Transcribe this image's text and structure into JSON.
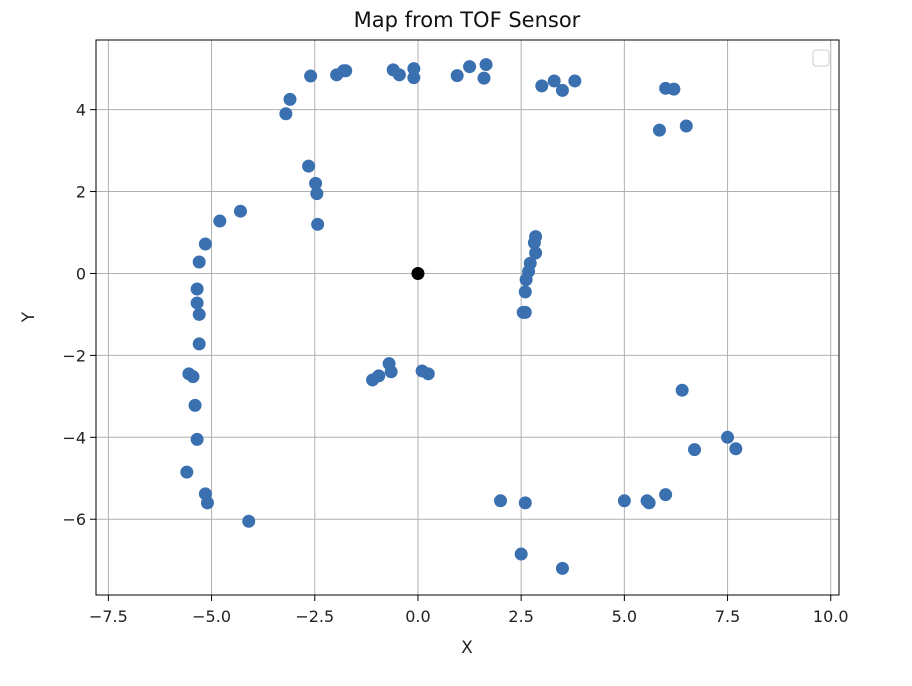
{
  "chart_data": {
    "type": "scatter",
    "title": "Map from TOF Sensor",
    "xlabel": "X",
    "ylabel": "Y",
    "xlim": [
      -7.8,
      10.2
    ],
    "ylim": [
      -7.85,
      5.7
    ],
    "xticks": [
      -7.5,
      -5.0,
      -2.5,
      0.0,
      2.5,
      5.0,
      7.5,
      10.0
    ],
    "xtick_labels": [
      "−7.5",
      "−5.0",
      "−2.5",
      "0.0",
      "2.5",
      "5.0",
      "7.5",
      "10.0"
    ],
    "yticks": [
      -6,
      -4,
      -2,
      0,
      2,
      4
    ],
    "ytick_labels": [
      "−6",
      "−4",
      "−2",
      "0",
      "2",
      "4"
    ],
    "grid": true,
    "legend": "top-right",
    "colors": {
      "points": "#3b70b0",
      "origin": "#000000",
      "grid": "#b0b0b0"
    },
    "series": [
      {
        "color": "#3b70b0",
        "x": [
          -3.2,
          -3.1,
          -2.6,
          -1.97,
          -1.8,
          -1.75,
          -0.6,
          -0.45,
          -0.1,
          -0.1,
          0.95,
          1.25,
          1.6,
          1.65,
          3.0,
          3.3,
          3.5,
          3.8,
          6.0,
          6.2,
          5.85,
          6.5,
          -2.65,
          -2.48,
          -2.45,
          -2.43,
          -4.3,
          -4.8,
          -5.15,
          -5.3,
          -5.35,
          -5.35,
          -5.3,
          -5.3,
          -5.55,
          -5.45,
          -5.4,
          -5.35,
          -5.6,
          -5.15,
          -5.1,
          -4.1,
          -1.1,
          -0.95,
          -0.7,
          -0.65,
          0.1,
          0.25,
          2.85,
          2.82,
          2.85,
          2.72,
          2.68,
          2.62,
          2.6,
          2.55,
          2.6,
          2.0,
          2.6,
          2.5,
          3.5,
          5.0,
          5.55,
          5.6,
          6.0,
          6.4,
          6.7,
          7.5,
          7.7
        ],
        "y": [
          3.9,
          4.25,
          4.82,
          4.85,
          4.95,
          4.95,
          4.97,
          4.85,
          4.78,
          5.0,
          4.83,
          5.05,
          4.77,
          5.1,
          4.58,
          4.7,
          4.47,
          4.7,
          4.52,
          4.5,
          3.5,
          3.6,
          2.62,
          2.2,
          1.95,
          1.2,
          1.52,
          1.28,
          0.72,
          0.28,
          -0.38,
          -0.72,
          -1.0,
          -1.72,
          -2.45,
          -2.52,
          -3.22,
          -4.05,
          -4.85,
          -5.38,
          -5.6,
          -6.05,
          -2.6,
          -2.5,
          -2.2,
          -2.4,
          -2.38,
          -2.45,
          0.9,
          0.75,
          0.5,
          0.25,
          0.05,
          -0.15,
          -0.45,
          -0.95,
          -0.95,
          -5.55,
          -5.6,
          -6.85,
          -7.2,
          -5.55,
          -5.55,
          -5.6,
          -5.4,
          -2.85,
          -4.3,
          -4.0,
          -4.28
        ]
      },
      {
        "color": "#000000",
        "x": [
          0.0
        ],
        "y": [
          0.0
        ]
      }
    ]
  }
}
